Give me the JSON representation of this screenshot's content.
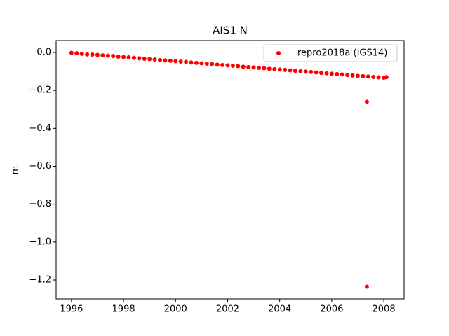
{
  "chart_data": {
    "type": "scatter",
    "title": "AIS1 N",
    "ylabel": "m",
    "x": [
      1996.0,
      1996.2,
      1996.4,
      1996.6,
      1996.8,
      1997.0,
      1997.2,
      1997.4,
      1997.6,
      1997.8,
      1998.0,
      1998.2,
      1998.4,
      1998.6,
      1998.8,
      1999.0,
      1999.2,
      1999.4,
      1999.6,
      1999.8,
      2000.0,
      2000.2,
      2000.4,
      2000.6,
      2000.8,
      2001.0,
      2001.2,
      2001.4,
      2001.6,
      2001.8,
      2002.0,
      2002.2,
      2002.4,
      2002.6,
      2002.8,
      2003.0,
      2003.2,
      2003.4,
      2003.6,
      2003.8,
      2004.0,
      2004.2,
      2004.4,
      2004.6,
      2004.8,
      2005.0,
      2005.2,
      2005.4,
      2005.6,
      2005.8,
      2006.0,
      2006.2,
      2006.4,
      2006.6,
      2006.8,
      2007.0,
      2007.2,
      2007.35,
      2007.35,
      2007.4,
      2007.6,
      2007.8,
      2008.0,
      2008.1
    ],
    "series": [
      {
        "name": "repro2018a (IGS14)",
        "color": "#ff0000",
        "values": [
          -0.002,
          -0.004,
          -0.007,
          -0.01,
          -0.011,
          -0.013,
          -0.015,
          -0.017,
          -0.019,
          -0.022,
          -0.024,
          -0.026,
          -0.028,
          -0.031,
          -0.033,
          -0.035,
          -0.037,
          -0.04,
          -0.042,
          -0.044,
          -0.046,
          -0.048,
          -0.05,
          -0.053,
          -0.055,
          -0.057,
          -0.059,
          -0.061,
          -0.064,
          -0.066,
          -0.068,
          -0.07,
          -0.072,
          -0.075,
          -0.077,
          -0.079,
          -0.081,
          -0.083,
          -0.086,
          -0.088,
          -0.09,
          -0.092,
          -0.094,
          -0.097,
          -0.099,
          -0.101,
          -0.103,
          -0.105,
          -0.108,
          -0.11,
          -0.112,
          -0.114,
          -0.116,
          -0.119,
          -0.121,
          -0.123,
          -0.125,
          -0.26,
          -1.235,
          -0.127,
          -0.129,
          -0.131,
          -0.133,
          -0.13
        ]
      }
    ],
    "xlim": [
      1995.41,
      2008.78
    ],
    "ylim": [
      -1.2997,
      0.0628
    ],
    "xticks": [
      1996,
      1998,
      2000,
      2002,
      2004,
      2006,
      2008
    ],
    "yticks": [
      {
        "value": 0,
        "label": "0.0"
      },
      {
        "value": -0.2,
        "label": "−0.2"
      },
      {
        "value": -0.4,
        "label": "−0.4"
      },
      {
        "value": -0.6,
        "label": "−0.6"
      },
      {
        "value": -0.8,
        "label": "−0.8"
      },
      {
        "value": -1.0,
        "label": "−1.0"
      },
      {
        "value": -1.2,
        "label": "−1.2"
      }
    ],
    "legend": "upper right"
  }
}
